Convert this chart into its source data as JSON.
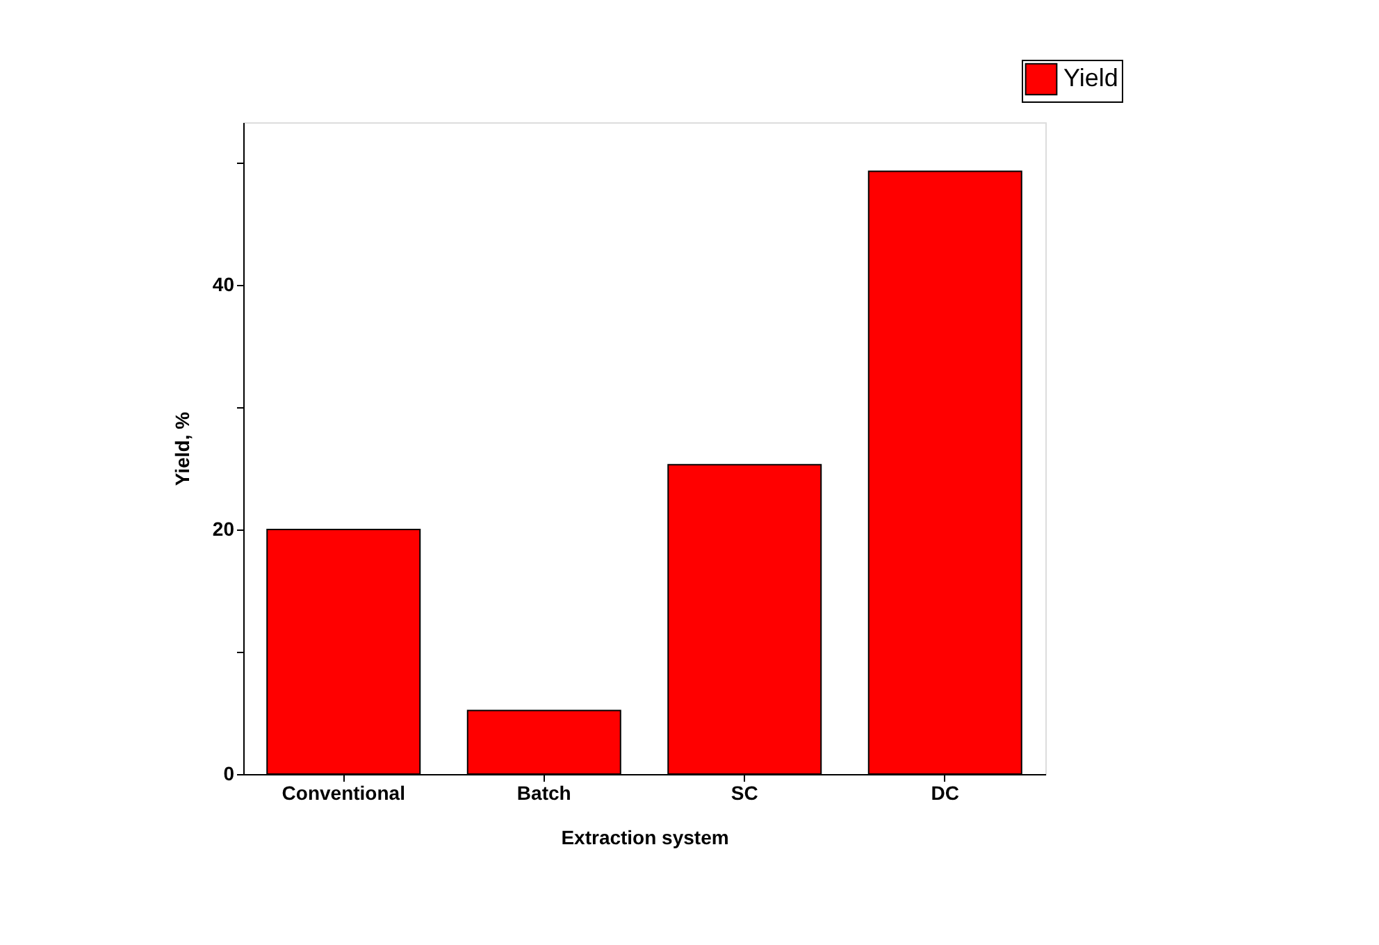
{
  "chart_data": {
    "type": "bar",
    "xlabel": "Extraction system",
    "ylabel": "Yield, %",
    "categories": [
      "Conventional",
      "Batch",
      "SC",
      "DC"
    ],
    "series": [
      {
        "name": "Yield",
        "color": "#ff0000",
        "values": [
          20.0,
          5.2,
          25.3,
          49.3
        ]
      }
    ],
    "ylim": [
      0,
      53.3
    ],
    "yticks": [
      0,
      {
        "value": 10,
        "label": null
      },
      20,
      {
        "value": 30,
        "label": null
      },
      40,
      {
        "value": 50,
        "label": null
      }
    ],
    "grid": false,
    "legend": "top right"
  }
}
